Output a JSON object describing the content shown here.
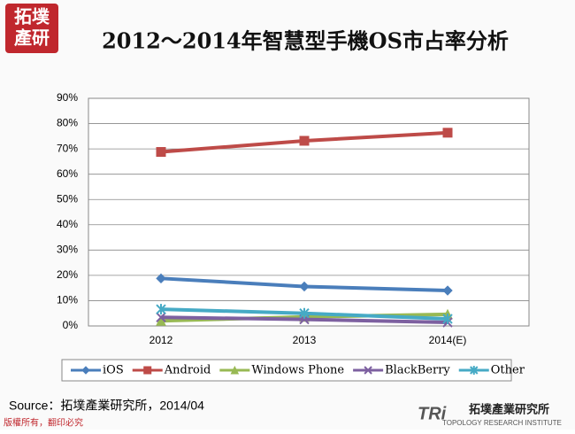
{
  "header": {
    "logo_lines": [
      "拓墣",
      "產研"
    ]
  },
  "chart_data": {
    "type": "line",
    "title": "2012～2014年智慧型手機OS市占率分析",
    "categories": [
      "2012",
      "2013",
      "2014(E)"
    ],
    "series": [
      {
        "name": "iOS",
        "color": "#4a7ebb",
        "marker": "diamond",
        "values": [
          18.8,
          15.6,
          14.0
        ]
      },
      {
        "name": "Android",
        "color": "#be4b48",
        "marker": "square",
        "values": [
          68.8,
          73.2,
          76.4
        ]
      },
      {
        "name": "Windows Phone",
        "color": "#98b954",
        "marker": "triangle",
        "values": [
          2.0,
          3.6,
          4.6
        ]
      },
      {
        "name": "BlackBerry",
        "color": "#7d60a0",
        "marker": "x",
        "values": [
          3.4,
          2.6,
          1.4
        ]
      },
      {
        "name": "Other",
        "color": "#46aac5",
        "marker": "star",
        "values": [
          6.6,
          5.0,
          2.8
        ]
      }
    ],
    "ylim": [
      0,
      90
    ],
    "yticks": [
      {
        "value": 0,
        "label": "0%"
      },
      {
        "value": 10,
        "label": "10%"
      },
      {
        "value": 20,
        "label": "20%"
      },
      {
        "value": 30,
        "label": "30%"
      },
      {
        "value": 40,
        "label": "40%"
      },
      {
        "value": 50,
        "label": "50%"
      },
      {
        "value": 60,
        "label": "60%"
      },
      {
        "value": 70,
        "label": "70%"
      },
      {
        "value": 80,
        "label": "80%"
      },
      {
        "value": 90,
        "label": "90%"
      }
    ],
    "grid": true,
    "legend": "bottom"
  },
  "source": "Source：拓墣產業研究所，2014/04",
  "footer": {
    "copyright": "版權所有，翻印必究",
    "brand_mark": "TRi",
    "brand_name": "拓墣產業研究所",
    "brand_english": "TOPOLOGY RESEARCH INSTITUTE"
  }
}
